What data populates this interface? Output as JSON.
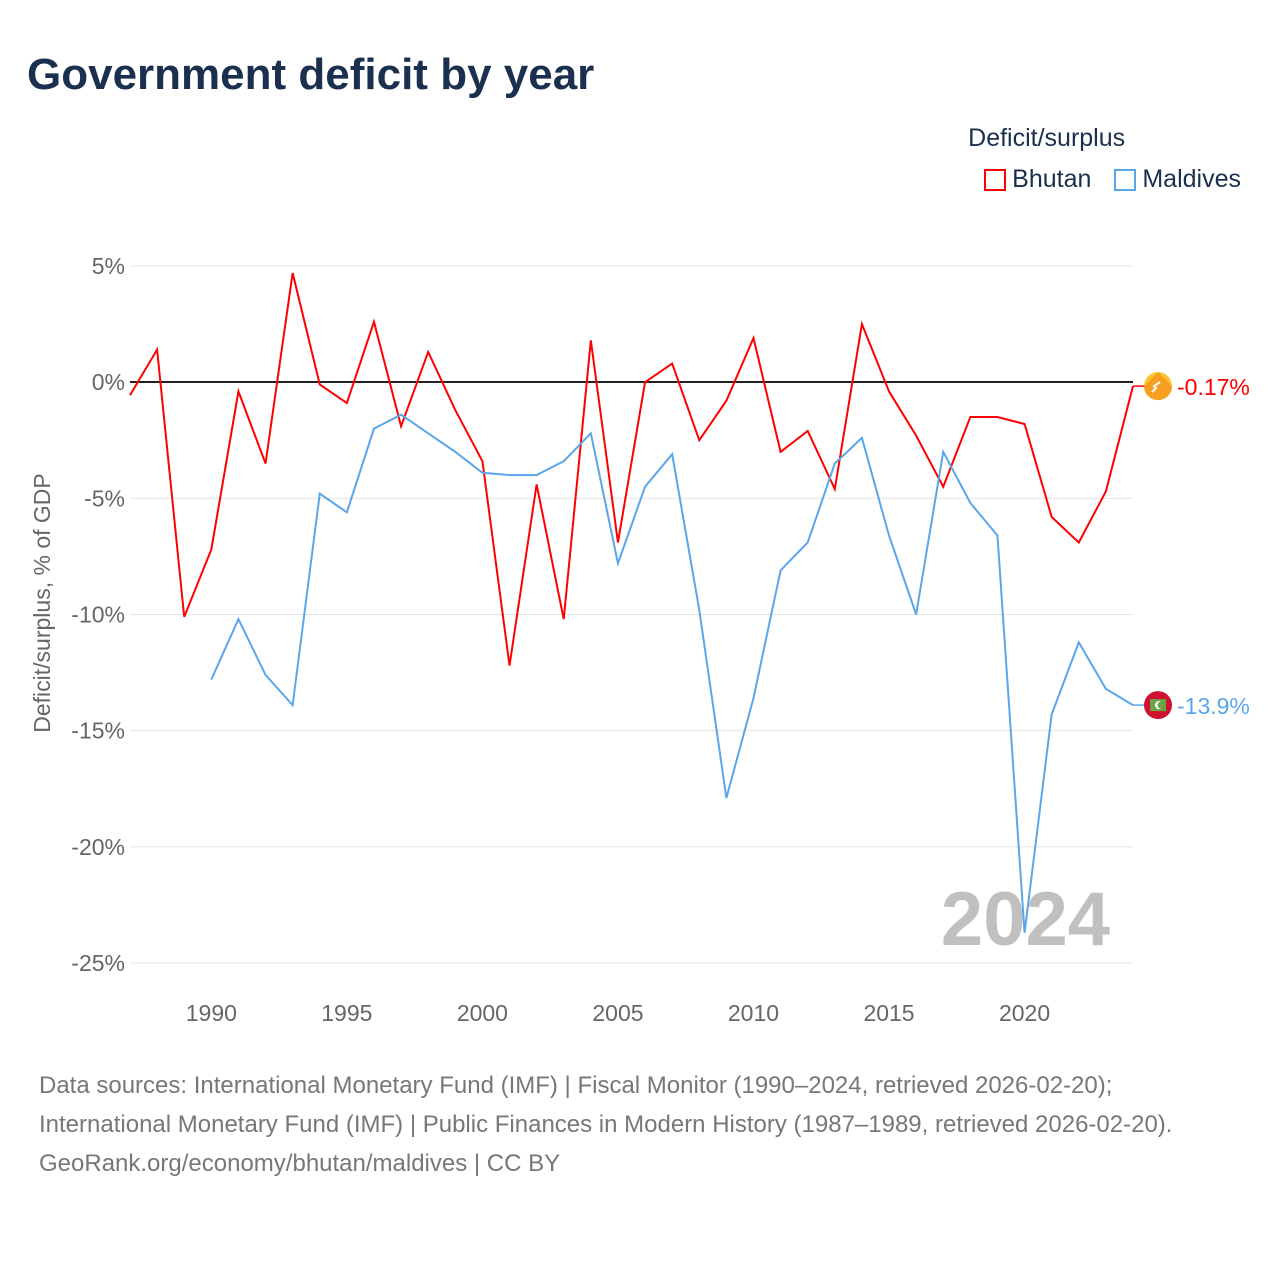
{
  "title": "Government deficit by year",
  "legend": {
    "title": "Deficit/surplus",
    "items": [
      {
        "label": "Bhutan",
        "color": "#ff0000"
      },
      {
        "label": "Maldives",
        "color": "#5ba6ea"
      }
    ]
  },
  "year_overlay": "2024",
  "sources": "Data sources: International Monetary Fund (IMF) | Fiscal Monitor (1990–2024, retrieved 2026-02-20); International Monetary Fund (IMF) | Public Finances in Modern History (1987–1989, retrieved 2026-02-20).",
  "credit": "GeoRank.org/economy/bhutan/maldives | CC BY",
  "chart_data": {
    "type": "line",
    "title": "Government deficit by year",
    "xlabel": "",
    "ylabel": "Deficit/surplus, % of GDP",
    "xlim": [
      1987,
      2024
    ],
    "ylim": [
      -25,
      5
    ],
    "xticks": [
      1990,
      1995,
      2000,
      2005,
      2010,
      2015,
      2020
    ],
    "xtick_labels": [
      "1990",
      "1995",
      "2000",
      "2005",
      "2010",
      "2015",
      "2020"
    ],
    "yticks": [
      5,
      0,
      -5,
      -10,
      -15,
      -20,
      -25
    ],
    "ytick_labels": [
      "5%",
      "0%",
      "-5%",
      "-10%",
      "-15%",
      "-20%",
      "-25%"
    ],
    "legend_position": "top-right",
    "series": [
      {
        "name": "Bhutan",
        "color": "#ff0000",
        "end_label": "-0.17%",
        "flag_icon": "bhutan-flag-icon",
        "x": [
          1987,
          1988,
          1989,
          1990,
          1991,
          1992,
          1993,
          1994,
          1995,
          1996,
          1997,
          1998,
          1999,
          2000,
          2001,
          2002,
          2003,
          2004,
          2005,
          2006,
          2007,
          2008,
          2009,
          2010,
          2011,
          2012,
          2013,
          2014,
          2015,
          2016,
          2017,
          2018,
          2019,
          2020,
          2021,
          2022,
          2023,
          2024
        ],
        "values": [
          -0.56,
          1.4,
          -10.1,
          -7.2,
          -0.4,
          -3.5,
          4.7,
          -0.1,
          -0.9,
          2.6,
          -1.9,
          1.3,
          -1.2,
          -3.4,
          -12.2,
          -4.4,
          -10.2,
          1.8,
          -6.9,
          0.0,
          0.8,
          -2.5,
          -0.8,
          1.9,
          -3.0,
          -2.1,
          -4.6,
          2.5,
          -0.4,
          -2.3,
          -4.5,
          -1.5,
          -1.5,
          -1.8,
          -5.8,
          -6.9,
          -4.7,
          -0.17
        ]
      },
      {
        "name": "Maldives",
        "color": "#5ba6ea",
        "end_label": "-13.9%",
        "flag_icon": "maldives-flag-icon",
        "x": [
          1990,
          1991,
          1992,
          1993,
          1994,
          1995,
          1996,
          1997,
          1998,
          1999,
          2000,
          2001,
          2002,
          2003,
          2004,
          2005,
          2006,
          2007,
          2008,
          2009,
          2010,
          2011,
          2012,
          2013,
          2014,
          2015,
          2016,
          2017,
          2018,
          2019,
          2020,
          2021,
          2022,
          2023,
          2024
        ],
        "values": [
          -12.8,
          -10.2,
          -12.6,
          -13.9,
          -4.8,
          -5.6,
          -2.0,
          -1.4,
          -2.2,
          -3.0,
          -3.9,
          -4.0,
          -4.0,
          -3.4,
          -2.2,
          -7.8,
          -4.5,
          -3.1,
          -9.8,
          -17.9,
          -13.6,
          -8.1,
          -6.9,
          -3.5,
          -2.4,
          -6.6,
          -10.0,
          -3.0,
          -5.2,
          -6.6,
          -23.7,
          -14.3,
          -11.2,
          -13.2,
          -13.9
        ]
      }
    ]
  }
}
